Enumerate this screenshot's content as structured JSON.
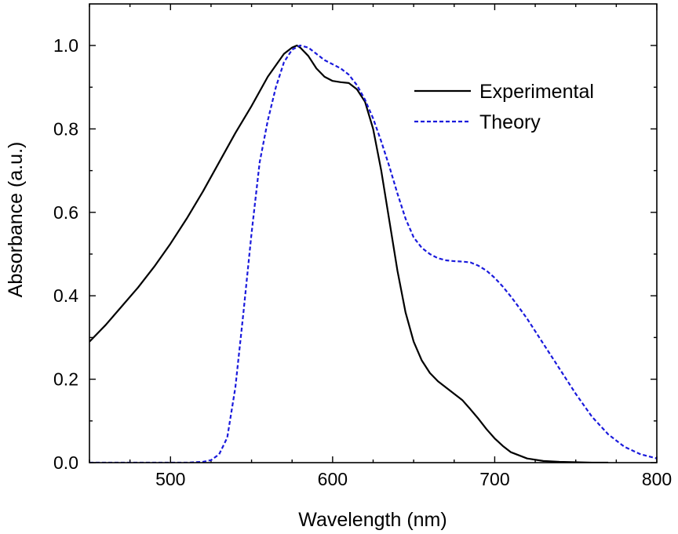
{
  "chart_data": {
    "type": "line",
    "title": "",
    "xlabel": "Wavelength (nm)",
    "ylabel": "Absorbance (a.u.)",
    "xlim": [
      450,
      800
    ],
    "ylim": [
      0.0,
      1.05
    ],
    "xticks": [
      500,
      600,
      700,
      800
    ],
    "xtick_labels": [
      "500",
      "600",
      "700",
      "800"
    ],
    "yticks": [
      0.0,
      0.2,
      0.4,
      0.6,
      0.8,
      1.0
    ],
    "ytick_labels": [
      "0.0",
      "0.2",
      "0.4",
      "0.6",
      "0.8",
      "1.0"
    ],
    "grid": false,
    "legend_position": "top-right",
    "series": [
      {
        "name": "Experimental",
        "color": "#000000",
        "style": "solid",
        "x": [
          450,
          460,
          470,
          480,
          490,
          500,
          510,
          520,
          530,
          540,
          550,
          560,
          570,
          575,
          578,
          580,
          585,
          590,
          595,
          600,
          605,
          610,
          615,
          620,
          625,
          630,
          635,
          640,
          645,
          650,
          655,
          660,
          665,
          670,
          675,
          680,
          685,
          690,
          695,
          700,
          705,
          710,
          720,
          730,
          740,
          750,
          760,
          770
        ],
        "y": [
          0.29,
          0.33,
          0.375,
          0.42,
          0.47,
          0.525,
          0.585,
          0.65,
          0.72,
          0.79,
          0.855,
          0.925,
          0.98,
          0.995,
          1.0,
          0.995,
          0.975,
          0.945,
          0.925,
          0.915,
          0.912,
          0.91,
          0.895,
          0.865,
          0.8,
          0.7,
          0.58,
          0.46,
          0.36,
          0.29,
          0.245,
          0.215,
          0.195,
          0.18,
          0.165,
          0.15,
          0.128,
          0.105,
          0.08,
          0.058,
          0.04,
          0.025,
          0.01,
          0.004,
          0.002,
          0.001,
          0.0,
          0.0
        ]
      },
      {
        "name": "Theory",
        "color": "#1a1adc",
        "style": "dashed",
        "x": [
          450,
          470,
          490,
          510,
          520,
          525,
          530,
          535,
          540,
          545,
          550,
          555,
          560,
          565,
          570,
          575,
          580,
          585,
          590,
          595,
          600,
          605,
          610,
          615,
          620,
          625,
          630,
          635,
          640,
          645,
          650,
          655,
          660,
          665,
          670,
          675,
          680,
          685,
          690,
          695,
          700,
          705,
          710,
          715,
          720,
          725,
          730,
          740,
          750,
          760,
          770,
          780,
          790,
          800
        ],
        "y": [
          0.0,
          0.0,
          0.0,
          0.0,
          0.002,
          0.006,
          0.02,
          0.06,
          0.18,
          0.36,
          0.55,
          0.72,
          0.82,
          0.9,
          0.96,
          0.99,
          1.0,
          0.995,
          0.98,
          0.965,
          0.955,
          0.945,
          0.93,
          0.905,
          0.87,
          0.825,
          0.77,
          0.71,
          0.645,
          0.585,
          0.54,
          0.515,
          0.5,
          0.49,
          0.485,
          0.483,
          0.482,
          0.48,
          0.472,
          0.46,
          0.443,
          0.422,
          0.398,
          0.372,
          0.345,
          0.315,
          0.285,
          0.225,
          0.165,
          0.11,
          0.068,
          0.038,
          0.02,
          0.01
        ]
      }
    ]
  }
}
